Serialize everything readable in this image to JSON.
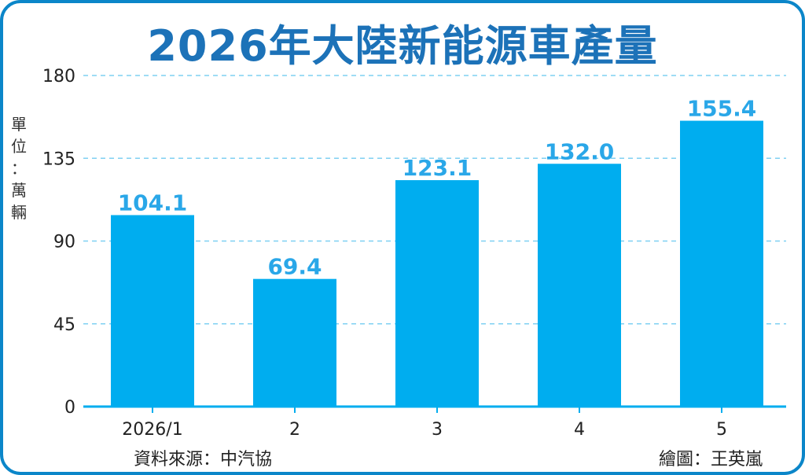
{
  "title": "2026年大陸新能源車產量",
  "unit_chars": [
    "單",
    "位",
    "：",
    "萬",
    "輛"
  ],
  "source": "資料來源：中汽協",
  "credit": "繪圖：王英嵐",
  "colors": {
    "bar": "#00adef",
    "title": "#1c72b8",
    "data_label": "#2aa7e8",
    "frame": "#0b86c9",
    "grid": "#7fd0f2",
    "axis": "#00adef"
  },
  "chart_data": {
    "type": "bar",
    "title": "2026年大陸新能源車產量",
    "ylabel": "單位：萬輛",
    "xlabel": "",
    "categories": [
      "2026/1",
      "2",
      "3",
      "4",
      "5"
    ],
    "values": [
      104.1,
      69.4,
      123.1,
      132.0,
      155.4
    ],
    "value_labels": [
      "104.1",
      "69.4",
      "123.1",
      "132.0",
      "155.4"
    ],
    "ylim": [
      0,
      180
    ],
    "yticks": [
      0,
      45,
      90,
      135,
      180
    ],
    "grid": "dashed horizontal"
  }
}
